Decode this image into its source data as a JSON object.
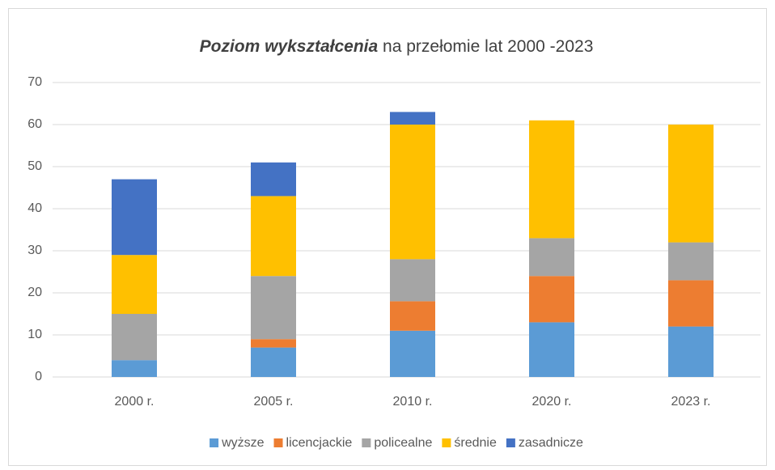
{
  "chart_data": {
    "type": "stacked_bar",
    "title": {
      "emphasis": "Poziom wykształcenia",
      "rest": " na przełomie lat 2000 -2023"
    },
    "categories": [
      "2000 r.",
      "2005 r.",
      "2010 r.",
      "2020 r.",
      "2023 r."
    ],
    "series": [
      {
        "name": "wyższe",
        "color": "#5b9bd5",
        "values": [
          4,
          7,
          11,
          13,
          12
        ]
      },
      {
        "name": "licencjackie",
        "color": "#ed7d31",
        "values": [
          0,
          2,
          7,
          11,
          11
        ]
      },
      {
        "name": "policealne",
        "color": "#a5a5a5",
        "values": [
          11,
          15,
          10,
          9,
          9
        ]
      },
      {
        "name": "średnie",
        "color": "#ffc000",
        "values": [
          14,
          19,
          32,
          28,
          28
        ]
      },
      {
        "name": "zasadnicze",
        "color": "#4472c4",
        "values": [
          18,
          8,
          3,
          0,
          0
        ]
      }
    ],
    "ylim": [
      0,
      70
    ],
    "yticks": [
      0,
      10,
      20,
      30,
      40,
      50,
      60,
      70
    ],
    "grid": true,
    "legend": "bottom"
  }
}
